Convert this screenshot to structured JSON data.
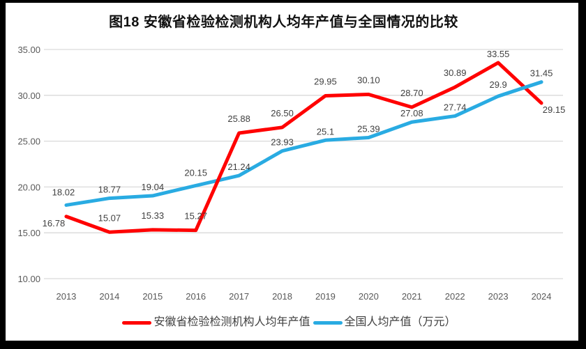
{
  "title": "图18 安徽省检验检测机构人均年产值与全国情况的比较",
  "colors": {
    "anhui_series": "#FF0000",
    "national_series": "#29ABE2",
    "gridline": "#D9D9D9",
    "tick_label": "#595959",
    "data_label": "#404040",
    "frame": "#000000",
    "background": "#FFFFFF"
  },
  "legend": {
    "items": [
      {
        "label": "安徽省检验检测机构人均年产值",
        "color": "#FF0000"
      },
      {
        "label": "全国人均产值（万元）",
        "color": "#29ABE2"
      }
    ]
  },
  "chart_data": {
    "type": "line",
    "title": "图18 安徽省检验检测机构人均年产值与全国情况的比较",
    "x": [
      "2013",
      "2014",
      "2015",
      "2016",
      "2017",
      "2018",
      "2019",
      "2020",
      "2021",
      "2022",
      "2023",
      "2024"
    ],
    "series": [
      {
        "name": "安徽省检验检测机构人均年产值",
        "color": "#FF0000",
        "values": [
          16.78,
          15.07,
          15.33,
          15.27,
          25.88,
          26.5,
          29.95,
          30.1,
          28.7,
          30.89,
          33.55,
          29.15
        ],
        "labels": [
          "16.78",
          "15.07",
          "15.33",
          "15.27",
          "25.88",
          "26.50",
          "29.95",
          "30.10",
          "28.70",
          "30.89",
          "33.55",
          "29.15"
        ]
      },
      {
        "name": "全国人均产值（万元）",
        "color": "#29ABE2",
        "values": [
          18.02,
          18.77,
          19.04,
          20.15,
          21.24,
          23.93,
          25.1,
          25.39,
          27.08,
          27.74,
          29.9,
          31.45
        ],
        "labels": [
          "18.02",
          "18.77",
          "19.04",
          "20.15",
          "21.24",
          "23.93",
          "25.1",
          "25.39",
          "27.08",
          "27.74",
          "29.9",
          "31.45"
        ]
      }
    ],
    "ylim": [
      10,
      35
    ],
    "yticks": [
      "10.00",
      "15.00",
      "20.00",
      "25.00",
      "30.00",
      "35.00"
    ],
    "grid": true,
    "legend_position": "bottom",
    "xlabel": "",
    "ylabel": "",
    "label_layout": {
      "default_dy": [
        -16,
        -8
      ],
      "series0_offsets": {
        "0": [
          -18,
          14
        ],
        "10": [
          0,
          -8
        ],
        "11": [
          18,
          14
        ]
      },
      "series1_offsets": {
        "0": [
          -4,
          -14
        ],
        "3": [
          0,
          -14
        ],
        "10": [
          0,
          -12
        ]
      }
    }
  }
}
